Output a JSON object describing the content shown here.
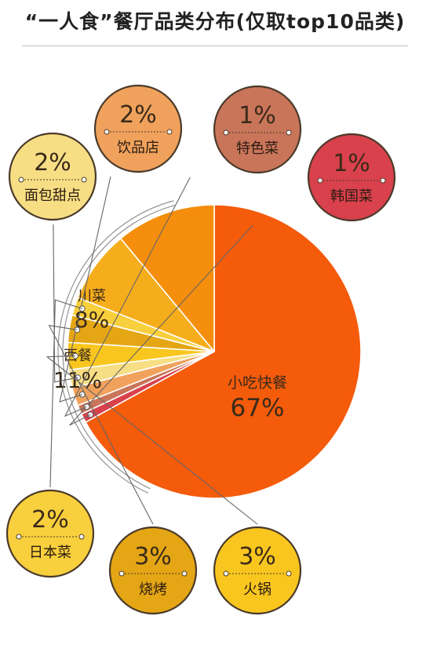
{
  "title": "“一人食”餐厅品类分布(仅取top10品类)",
  "chart_data": {
    "type": "pie",
    "title": "“一人食”餐厅品类分布(仅取top10品类)",
    "slices": [
      {
        "label": "小吃快餐",
        "value": 67,
        "value_label": "67%",
        "color": "#f45b0b"
      },
      {
        "label": "韩国菜",
        "value": 1,
        "value_label": "1%",
        "color": "#d9414c"
      },
      {
        "label": "特色菜",
        "value": 1,
        "value_label": "1%",
        "color": "#c9755a"
      },
      {
        "label": "饮品店",
        "value": 2,
        "value_label": "2%",
        "color": "#f0a25c"
      },
      {
        "label": "面包甜点",
        "value": 2,
        "value_label": "2%",
        "color": "#f7de84"
      },
      {
        "label": "火锅",
        "value": 3,
        "value_label": "3%",
        "color": "#f9c61f"
      },
      {
        "label": "烧烤",
        "value": 3,
        "value_label": "3%",
        "color": "#e4a614"
      },
      {
        "label": "日本菜",
        "value": 2,
        "value_label": "2%",
        "color": "#f8cf3c"
      },
      {
        "label": "川菜",
        "value": 8,
        "value_label": "8%",
        "color": "#f6ad1b"
      },
      {
        "label": "西餐",
        "value": 11,
        "value_label": "11%",
        "color": "#f58e0c"
      }
    ]
  }
}
